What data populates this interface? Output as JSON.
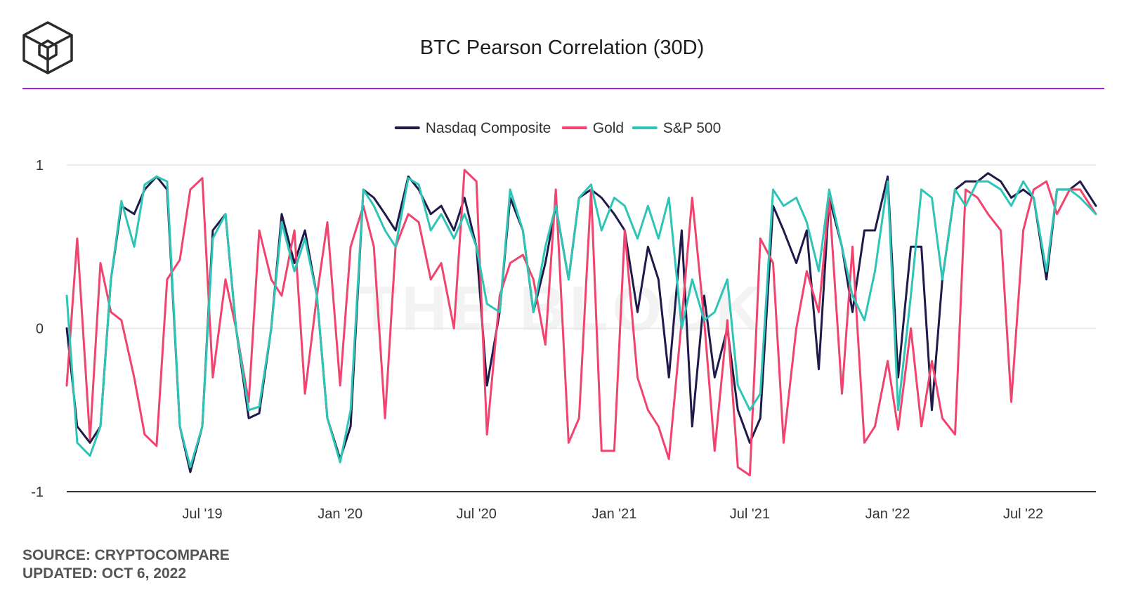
{
  "title": "BTC Pearson Correlation (30D)",
  "footer": {
    "source": "SOURCE: CRYPTOCOMPARE",
    "updated": "UPDATED: OCT 6, 2022"
  },
  "watermark": "THE BLOCK",
  "colors": {
    "accent_rule": "#a020f0",
    "grid": "#e6e6e6",
    "axis": "#333333"
  },
  "chart_data": {
    "type": "line",
    "title": "BTC Pearson Correlation (30D)",
    "legend_position": "top-center",
    "grid": true,
    "ylim": [
      -1,
      1
    ],
    "y_ticks": [
      1,
      0,
      -1
    ],
    "y_tick_labels": [
      "1",
      "0",
      "-1"
    ],
    "xlim": [
      "2019-01-01",
      "2022-10-06"
    ],
    "x_ticks": [
      {
        "date": "2019-07-01",
        "label": "Jul '19"
      },
      {
        "date": "2020-01-01",
        "label": "Jan '20"
      },
      {
        "date": "2020-07-01",
        "label": "Jul '20"
      },
      {
        "date": "2021-01-01",
        "label": "Jan '21"
      },
      {
        "date": "2021-07-01",
        "label": "Jul '21"
      },
      {
        "date": "2022-01-01",
        "label": "Jan '22"
      },
      {
        "date": "2022-07-01",
        "label": "Jul '22"
      }
    ],
    "series": [
      {
        "name": "Nasdaq Composite",
        "color": "#1e1b4b",
        "x": [
          "2019-01-01",
          "2019-01-15",
          "2019-02-01",
          "2019-02-15",
          "2019-03-01",
          "2019-03-15",
          "2019-04-01",
          "2019-04-15",
          "2019-05-01",
          "2019-05-15",
          "2019-06-01",
          "2019-06-15",
          "2019-07-01",
          "2019-07-15",
          "2019-08-01",
          "2019-08-15",
          "2019-09-01",
          "2019-09-15",
          "2019-10-01",
          "2019-10-15",
          "2019-11-01",
          "2019-11-15",
          "2019-12-01",
          "2019-12-15",
          "2020-01-01",
          "2020-01-15",
          "2020-02-01",
          "2020-02-15",
          "2020-03-01",
          "2020-03-15",
          "2020-04-01",
          "2020-04-15",
          "2020-05-01",
          "2020-05-15",
          "2020-06-01",
          "2020-06-15",
          "2020-07-01",
          "2020-07-15",
          "2020-08-01",
          "2020-08-15",
          "2020-09-01",
          "2020-09-15",
          "2020-10-01",
          "2020-10-15",
          "2020-11-01",
          "2020-11-15",
          "2020-12-01",
          "2020-12-15",
          "2021-01-01",
          "2021-01-15",
          "2021-02-01",
          "2021-02-15",
          "2021-03-01",
          "2021-03-15",
          "2021-04-01",
          "2021-04-15",
          "2021-05-01",
          "2021-05-15",
          "2021-06-01",
          "2021-06-15",
          "2021-07-01",
          "2021-07-15",
          "2021-08-01",
          "2021-08-15",
          "2021-09-01",
          "2021-09-15",
          "2021-10-01",
          "2021-10-15",
          "2021-11-01",
          "2021-11-15",
          "2021-12-01",
          "2021-12-15",
          "2022-01-01",
          "2022-01-15",
          "2022-02-01",
          "2022-02-15",
          "2022-03-01",
          "2022-03-15",
          "2022-04-01",
          "2022-04-15",
          "2022-05-01",
          "2022-05-15",
          "2022-06-01",
          "2022-06-15",
          "2022-07-01",
          "2022-07-15",
          "2022-08-01",
          "2022-08-15",
          "2022-09-01",
          "2022-09-15",
          "2022-10-06"
        ],
        "values": [
          0.0,
          -0.6,
          -0.7,
          -0.6,
          0.3,
          0.75,
          0.7,
          0.85,
          0.93,
          0.85,
          -0.6,
          -0.88,
          -0.6,
          0.6,
          0.7,
          0.0,
          -0.55,
          -0.52,
          0.0,
          0.7,
          0.4,
          0.6,
          0.2,
          -0.55,
          -0.8,
          -0.6,
          0.85,
          0.8,
          0.7,
          0.6,
          0.93,
          0.85,
          0.7,
          0.75,
          0.6,
          0.8,
          0.5,
          -0.35,
          0.1,
          0.8,
          0.6,
          0.1,
          0.4,
          0.75,
          0.3,
          0.8,
          0.85,
          0.8,
          0.7,
          0.6,
          0.1,
          0.5,
          0.3,
          -0.3,
          0.6,
          -0.6,
          0.2,
          -0.3,
          0.0,
          -0.5,
          -0.7,
          -0.55,
          0.75,
          0.6,
          0.4,
          0.6,
          -0.25,
          0.8,
          0.5,
          0.1,
          0.6,
          0.6,
          0.93,
          -0.3,
          0.5,
          0.5,
          -0.5,
          0.3,
          0.85,
          0.9,
          0.9,
          0.95,
          0.9,
          0.8,
          0.85,
          0.8,
          0.3,
          0.85,
          0.85,
          0.9,
          0.75
        ]
      },
      {
        "name": "Gold",
        "color": "#f0446e",
        "x": [
          "2019-01-01",
          "2019-01-15",
          "2019-02-01",
          "2019-02-15",
          "2019-03-01",
          "2019-03-15",
          "2019-04-01",
          "2019-04-15",
          "2019-05-01",
          "2019-05-15",
          "2019-06-01",
          "2019-06-15",
          "2019-07-01",
          "2019-07-15",
          "2019-08-01",
          "2019-08-15",
          "2019-09-01",
          "2019-09-15",
          "2019-10-01",
          "2019-10-15",
          "2019-11-01",
          "2019-11-15",
          "2019-12-01",
          "2019-12-15",
          "2020-01-01",
          "2020-01-15",
          "2020-02-01",
          "2020-02-15",
          "2020-03-01",
          "2020-03-15",
          "2020-04-01",
          "2020-04-15",
          "2020-05-01",
          "2020-05-15",
          "2020-06-01",
          "2020-06-15",
          "2020-07-01",
          "2020-07-15",
          "2020-08-01",
          "2020-08-15",
          "2020-09-01",
          "2020-09-15",
          "2020-10-01",
          "2020-10-15",
          "2020-11-01",
          "2020-11-15",
          "2020-12-01",
          "2020-12-15",
          "2021-01-01",
          "2021-01-15",
          "2021-02-01",
          "2021-02-15",
          "2021-03-01",
          "2021-03-15",
          "2021-04-01",
          "2021-04-15",
          "2021-05-01",
          "2021-05-15",
          "2021-06-01",
          "2021-06-15",
          "2021-07-01",
          "2021-07-15",
          "2021-08-01",
          "2021-08-15",
          "2021-09-01",
          "2021-09-15",
          "2021-10-01",
          "2021-10-15",
          "2021-11-01",
          "2021-11-15",
          "2021-12-01",
          "2021-12-15",
          "2022-01-01",
          "2022-01-15",
          "2022-02-01",
          "2022-02-15",
          "2022-03-01",
          "2022-03-15",
          "2022-04-01",
          "2022-04-15",
          "2022-05-01",
          "2022-05-15",
          "2022-06-01",
          "2022-06-15",
          "2022-07-01",
          "2022-07-15",
          "2022-08-01",
          "2022-08-15",
          "2022-09-01",
          "2022-09-15",
          "2022-10-06"
        ],
        "values": [
          -0.35,
          0.55,
          -0.68,
          0.4,
          0.1,
          0.05,
          -0.3,
          -0.65,
          -0.72,
          0.3,
          0.42,
          0.85,
          0.92,
          -0.3,
          0.3,
          0.0,
          -0.45,
          0.6,
          0.3,
          0.2,
          0.6,
          -0.4,
          0.2,
          0.65,
          -0.35,
          0.5,
          0.75,
          0.5,
          -0.55,
          0.5,
          0.7,
          0.65,
          0.3,
          0.4,
          0.0,
          0.97,
          0.9,
          -0.65,
          0.2,
          0.4,
          0.45,
          0.3,
          -0.1,
          0.85,
          -0.7,
          -0.55,
          0.85,
          -0.75,
          -0.75,
          0.6,
          -0.3,
          -0.5,
          -0.6,
          -0.8,
          0.05,
          0.8,
          0.05,
          -0.75,
          0.05,
          -0.85,
          -0.9,
          0.55,
          0.4,
          -0.7,
          0.0,
          0.35,
          0.1,
          0.8,
          -0.4,
          0.5,
          -0.7,
          -0.6,
          -0.2,
          -0.62,
          0.0,
          -0.6,
          -0.2,
          -0.55,
          -0.65,
          0.85,
          0.8,
          0.7,
          0.6,
          -0.45,
          0.6,
          0.85,
          0.9,
          0.7,
          0.85,
          0.85,
          0.7
        ]
      },
      {
        "name": "S&P 500",
        "color": "#2ec4b6",
        "x": [
          "2019-01-01",
          "2019-01-15",
          "2019-02-01",
          "2019-02-15",
          "2019-03-01",
          "2019-03-15",
          "2019-04-01",
          "2019-04-15",
          "2019-05-01",
          "2019-05-15",
          "2019-06-01",
          "2019-06-15",
          "2019-07-01",
          "2019-07-15",
          "2019-08-01",
          "2019-08-15",
          "2019-09-01",
          "2019-09-15",
          "2019-10-01",
          "2019-10-15",
          "2019-11-01",
          "2019-11-15",
          "2019-12-01",
          "2019-12-15",
          "2020-01-01",
          "2020-01-15",
          "2020-02-01",
          "2020-02-15",
          "2020-03-01",
          "2020-03-15",
          "2020-04-01",
          "2020-04-15",
          "2020-05-01",
          "2020-05-15",
          "2020-06-01",
          "2020-06-15",
          "2020-07-01",
          "2020-07-15",
          "2020-08-01",
          "2020-08-15",
          "2020-09-01",
          "2020-09-15",
          "2020-10-01",
          "2020-10-15",
          "2020-11-01",
          "2020-11-15",
          "2020-12-01",
          "2020-12-15",
          "2021-01-01",
          "2021-01-15",
          "2021-02-01",
          "2021-02-15",
          "2021-03-01",
          "2021-03-15",
          "2021-04-01",
          "2021-04-15",
          "2021-05-01",
          "2021-05-15",
          "2021-06-01",
          "2021-06-15",
          "2021-07-01",
          "2021-07-15",
          "2021-08-01",
          "2021-08-15",
          "2021-09-01",
          "2021-09-15",
          "2021-10-01",
          "2021-10-15",
          "2021-11-01",
          "2021-11-15",
          "2021-12-01",
          "2021-12-15",
          "2022-01-01",
          "2022-01-15",
          "2022-02-01",
          "2022-02-15",
          "2022-03-01",
          "2022-03-15",
          "2022-04-01",
          "2022-04-15",
          "2022-05-01",
          "2022-05-15",
          "2022-06-01",
          "2022-06-15",
          "2022-07-01",
          "2022-07-15",
          "2022-08-01",
          "2022-08-15",
          "2022-09-01",
          "2022-09-15",
          "2022-10-06"
        ],
        "values": [
          0.2,
          -0.7,
          -0.78,
          -0.6,
          0.3,
          0.78,
          0.5,
          0.88,
          0.93,
          0.9,
          -0.6,
          -0.85,
          -0.6,
          0.55,
          0.7,
          0.0,
          -0.5,
          -0.48,
          0.0,
          0.65,
          0.35,
          0.55,
          0.2,
          -0.55,
          -0.82,
          -0.5,
          0.85,
          0.75,
          0.6,
          0.5,
          0.92,
          0.88,
          0.6,
          0.7,
          0.55,
          0.7,
          0.5,
          0.15,
          0.1,
          0.85,
          0.6,
          0.1,
          0.5,
          0.75,
          0.3,
          0.8,
          0.88,
          0.6,
          0.8,
          0.75,
          0.55,
          0.75,
          0.55,
          0.8,
          0.0,
          0.3,
          0.05,
          0.1,
          0.3,
          -0.35,
          -0.5,
          -0.4,
          0.85,
          0.75,
          0.8,
          0.65,
          0.35,
          0.85,
          0.5,
          0.2,
          0.05,
          0.35,
          0.9,
          -0.5,
          0.2,
          0.85,
          0.8,
          0.3,
          0.85,
          0.75,
          0.9,
          0.9,
          0.85,
          0.75,
          0.9,
          0.8,
          0.35,
          0.85,
          0.85,
          0.8,
          0.7
        ]
      }
    ]
  }
}
